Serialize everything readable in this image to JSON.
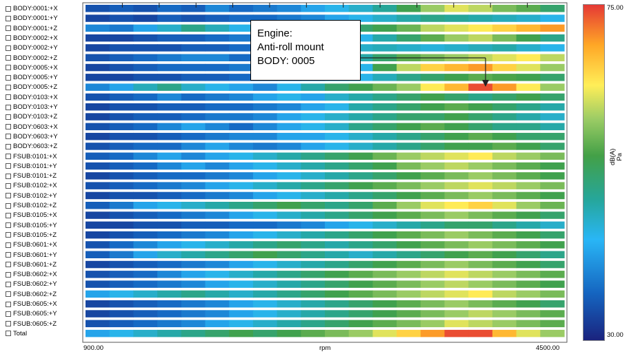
{
  "chart_data": {
    "type": "heatmap",
    "rows": [
      "BODY:0001:+X",
      "BODY:0001:+Y",
      "BODY:0001:+Z",
      "BODY:0002:+X",
      "BODY:0002:+Y",
      "BODY:0002:+Z",
      "BODY:0005:+X",
      "BODY:0005:+Y",
      "BODY:0005:+Z",
      "BODY:0103:+X",
      "BODY:0103:+Y",
      "BODY:0103:+Z",
      "BODY:0603:+X",
      "BODY:0603:+Y",
      "BODY:0603:+Z",
      "FSUB:0101:+X",
      "FSUB:0101:+Y",
      "FSUB:0101:+Z",
      "FSUB:0102:+X",
      "FSUB:0102:+Y",
      "FSUB:0102:+Z",
      "FSUB:0105:+X",
      "FSUB:0105:+Y",
      "FSUB:0105:+Z",
      "FSUB:0601:+X",
      "FSUB:0601:+Y",
      "FSUB:0601:+Z",
      "FSUB:0602:+X",
      "FSUB:0602:+Y",
      "FSUB:0602:+Z",
      "FSUB:0605:+X",
      "FSUB:0605:+Y",
      "FSUB:0605:+Z",
      "Total"
    ],
    "xlabel": "rpm",
    "xlim": [
      900,
      4500
    ],
    "x_tick_labels": [
      "900.00",
      "4500.00"
    ],
    "colorbar": {
      "range": [
        30,
        75
      ],
      "max_label": "75.00",
      "min_label": "30.00",
      "unit_line1": "dB(A)",
      "unit_line2": "Pa",
      "colors": [
        "#1a237e",
        "#1565c0",
        "#29b6f6",
        "#26a69a",
        "#43a047",
        "#9ccc65",
        "#ffee58",
        "#ffa726",
        "#e53935"
      ]
    },
    "annotation": {
      "lines": [
        "Engine:",
        "Anti-roll mount",
        "BODY: 0005"
      ],
      "target_row": "BODY:0005:+Z",
      "target_rpm": 3850
    },
    "levels": [
      [
        34,
        35,
        34,
        36,
        35,
        38,
        36,
        37,
        38,
        40,
        42,
        44,
        47,
        52,
        58,
        62,
        60,
        56,
        54,
        50
      ],
      [
        33,
        34,
        33,
        35,
        34,
        35,
        36,
        36,
        37,
        38,
        40,
        42,
        44,
        46,
        48,
        47,
        46,
        45,
        44,
        42
      ],
      [
        38,
        37,
        40,
        44,
        48,
        45,
        42,
        40,
        42,
        45,
        48,
        50,
        52,
        55,
        60,
        62,
        64,
        66,
        68,
        70
      ],
      [
        33,
        33,
        34,
        35,
        35,
        36,
        37,
        36,
        37,
        38,
        40,
        42,
        46,
        50,
        54,
        58,
        60,
        56,
        52,
        48
      ],
      [
        33,
        34,
        34,
        34,
        35,
        35,
        36,
        37,
        38,
        40,
        42,
        44,
        45,
        44,
        43,
        44,
        45,
        46,
        44,
        42
      ],
      [
        34,
        35,
        36,
        37,
        38,
        38,
        36,
        37,
        40,
        42,
        44,
        46,
        50,
        54,
        56,
        58,
        60,
        62,
        64,
        60
      ],
      [
        33,
        34,
        35,
        36,
        36,
        36,
        37,
        37,
        38,
        38,
        40,
        42,
        52,
        60,
        66,
        68,
        70,
        66,
        62,
        58
      ],
      [
        33,
        33,
        34,
        34,
        35,
        35,
        36,
        36,
        37,
        38,
        40,
        42,
        45,
        48,
        50,
        52,
        54,
        53,
        52,
        50
      ],
      [
        38,
        40,
        45,
        48,
        44,
        42,
        40,
        38,
        42,
        46,
        50,
        52,
        55,
        58,
        64,
        68,
        74,
        70,
        64,
        58
      ],
      [
        34,
        35,
        36,
        38,
        36,
        37,
        38,
        40,
        42,
        40,
        44,
        46,
        48,
        50,
        52,
        50,
        48,
        50,
        52,
        50
      ],
      [
        33,
        34,
        34,
        35,
        35,
        36,
        36,
        37,
        38,
        40,
        42,
        46,
        48,
        50,
        52,
        54,
        52,
        50,
        48,
        46
      ],
      [
        33,
        34,
        35,
        35,
        36,
        37,
        37,
        38,
        40,
        42,
        44,
        46,
        48,
        50,
        50,
        52,
        50,
        48,
        46,
        44
      ],
      [
        34,
        35,
        36,
        38,
        40,
        38,
        36,
        38,
        40,
        42,
        44,
        48,
        50,
        52,
        54,
        52,
        50,
        48,
        48,
        46
      ],
      [
        33,
        34,
        34,
        35,
        36,
        37,
        38,
        38,
        40,
        40,
        42,
        44,
        46,
        48,
        50,
        52,
        54,
        52,
        50,
        50
      ],
      [
        34,
        35,
        36,
        36,
        38,
        40,
        38,
        37,
        38,
        40,
        42,
        44,
        46,
        48,
        50,
        52,
        52,
        54,
        52,
        50
      ],
      [
        35,
        36,
        38,
        40,
        38,
        40,
        42,
        44,
        46,
        48,
        50,
        52,
        55,
        58,
        60,
        62,
        64,
        60,
        58,
        56
      ],
      [
        34,
        35,
        36,
        38,
        40,
        38,
        40,
        42,
        44,
        46,
        48,
        50,
        52,
        56,
        58,
        60,
        58,
        56,
        54,
        52
      ],
      [
        33,
        34,
        35,
        36,
        36,
        37,
        38,
        40,
        42,
        44,
        46,
        48,
        50,
        52,
        54,
        56,
        58,
        56,
        54,
        52
      ],
      [
        34,
        35,
        36,
        37,
        38,
        40,
        42,
        44,
        46,
        48,
        50,
        52,
        54,
        56,
        58,
        60,
        62,
        60,
        58,
        56
      ],
      [
        33,
        34,
        34,
        35,
        36,
        37,
        38,
        40,
        42,
        44,
        46,
        48,
        50,
        52,
        54,
        56,
        58,
        56,
        54,
        52
      ],
      [
        35,
        37,
        40,
        42,
        44,
        46,
        48,
        50,
        52,
        50,
        48,
        50,
        54,
        58,
        62,
        64,
        66,
        62,
        58,
        55
      ],
      [
        33,
        34,
        35,
        36,
        37,
        38,
        40,
        42,
        44,
        46,
        48,
        50,
        52,
        54,
        56,
        58,
        56,
        54,
        52,
        50
      ],
      [
        33,
        33,
        34,
        34,
        35,
        35,
        36,
        36,
        37,
        38,
        40,
        42,
        44,
        46,
        48,
        50,
        50,
        48,
        46,
        44
      ],
      [
        33,
        34,
        35,
        36,
        37,
        38,
        40,
        42,
        44,
        46,
        48,
        50,
        52,
        54,
        56,
        58,
        56,
        54,
        52,
        50
      ],
      [
        34,
        36,
        38,
        40,
        42,
        44,
        46,
        48,
        50,
        48,
        46,
        48,
        50,
        52,
        54,
        56,
        58,
        56,
        54,
        52
      ],
      [
        35,
        37,
        40,
        44,
        46,
        48,
        50,
        52,
        50,
        48,
        46,
        44,
        46,
        48,
        50,
        52,
        54,
        52,
        50,
        48
      ],
      [
        33,
        34,
        35,
        36,
        37,
        38,
        40,
        42,
        44,
        46,
        48,
        50,
        52,
        54,
        56,
        58,
        56,
        54,
        52,
        50
      ],
      [
        34,
        35,
        36,
        38,
        40,
        42,
        44,
        46,
        48,
        50,
        52,
        54,
        56,
        58,
        60,
        62,
        60,
        58,
        56,
        54
      ],
      [
        34,
        35,
        36,
        37,
        38,
        40,
        42,
        44,
        46,
        48,
        50,
        52,
        54,
        56,
        58,
        60,
        58,
        56,
        54,
        52
      ],
      [
        40,
        42,
        44,
        46,
        48,
        46,
        44,
        46,
        48,
        50,
        52,
        54,
        56,
        58,
        60,
        62,
        64,
        60,
        58,
        56
      ],
      [
        33,
        34,
        35,
        36,
        37,
        38,
        40,
        42,
        44,
        46,
        48,
        50,
        52,
        54,
        56,
        58,
        56,
        54,
        52,
        50
      ],
      [
        33,
        34,
        35,
        36,
        37,
        38,
        40,
        42,
        44,
        46,
        48,
        50,
        52,
        54,
        56,
        58,
        60,
        58,
        56,
        54
      ],
      [
        34,
        35,
        36,
        37,
        38,
        40,
        42,
        44,
        46,
        48,
        50,
        52,
        54,
        56,
        58,
        62,
        60,
        58,
        56,
        54
      ],
      [
        40,
        42,
        44,
        46,
        48,
        50,
        52,
        50,
        52,
        54,
        56,
        58,
        62,
        66,
        70,
        74,
        74,
        68,
        62,
        58
      ]
    ]
  }
}
